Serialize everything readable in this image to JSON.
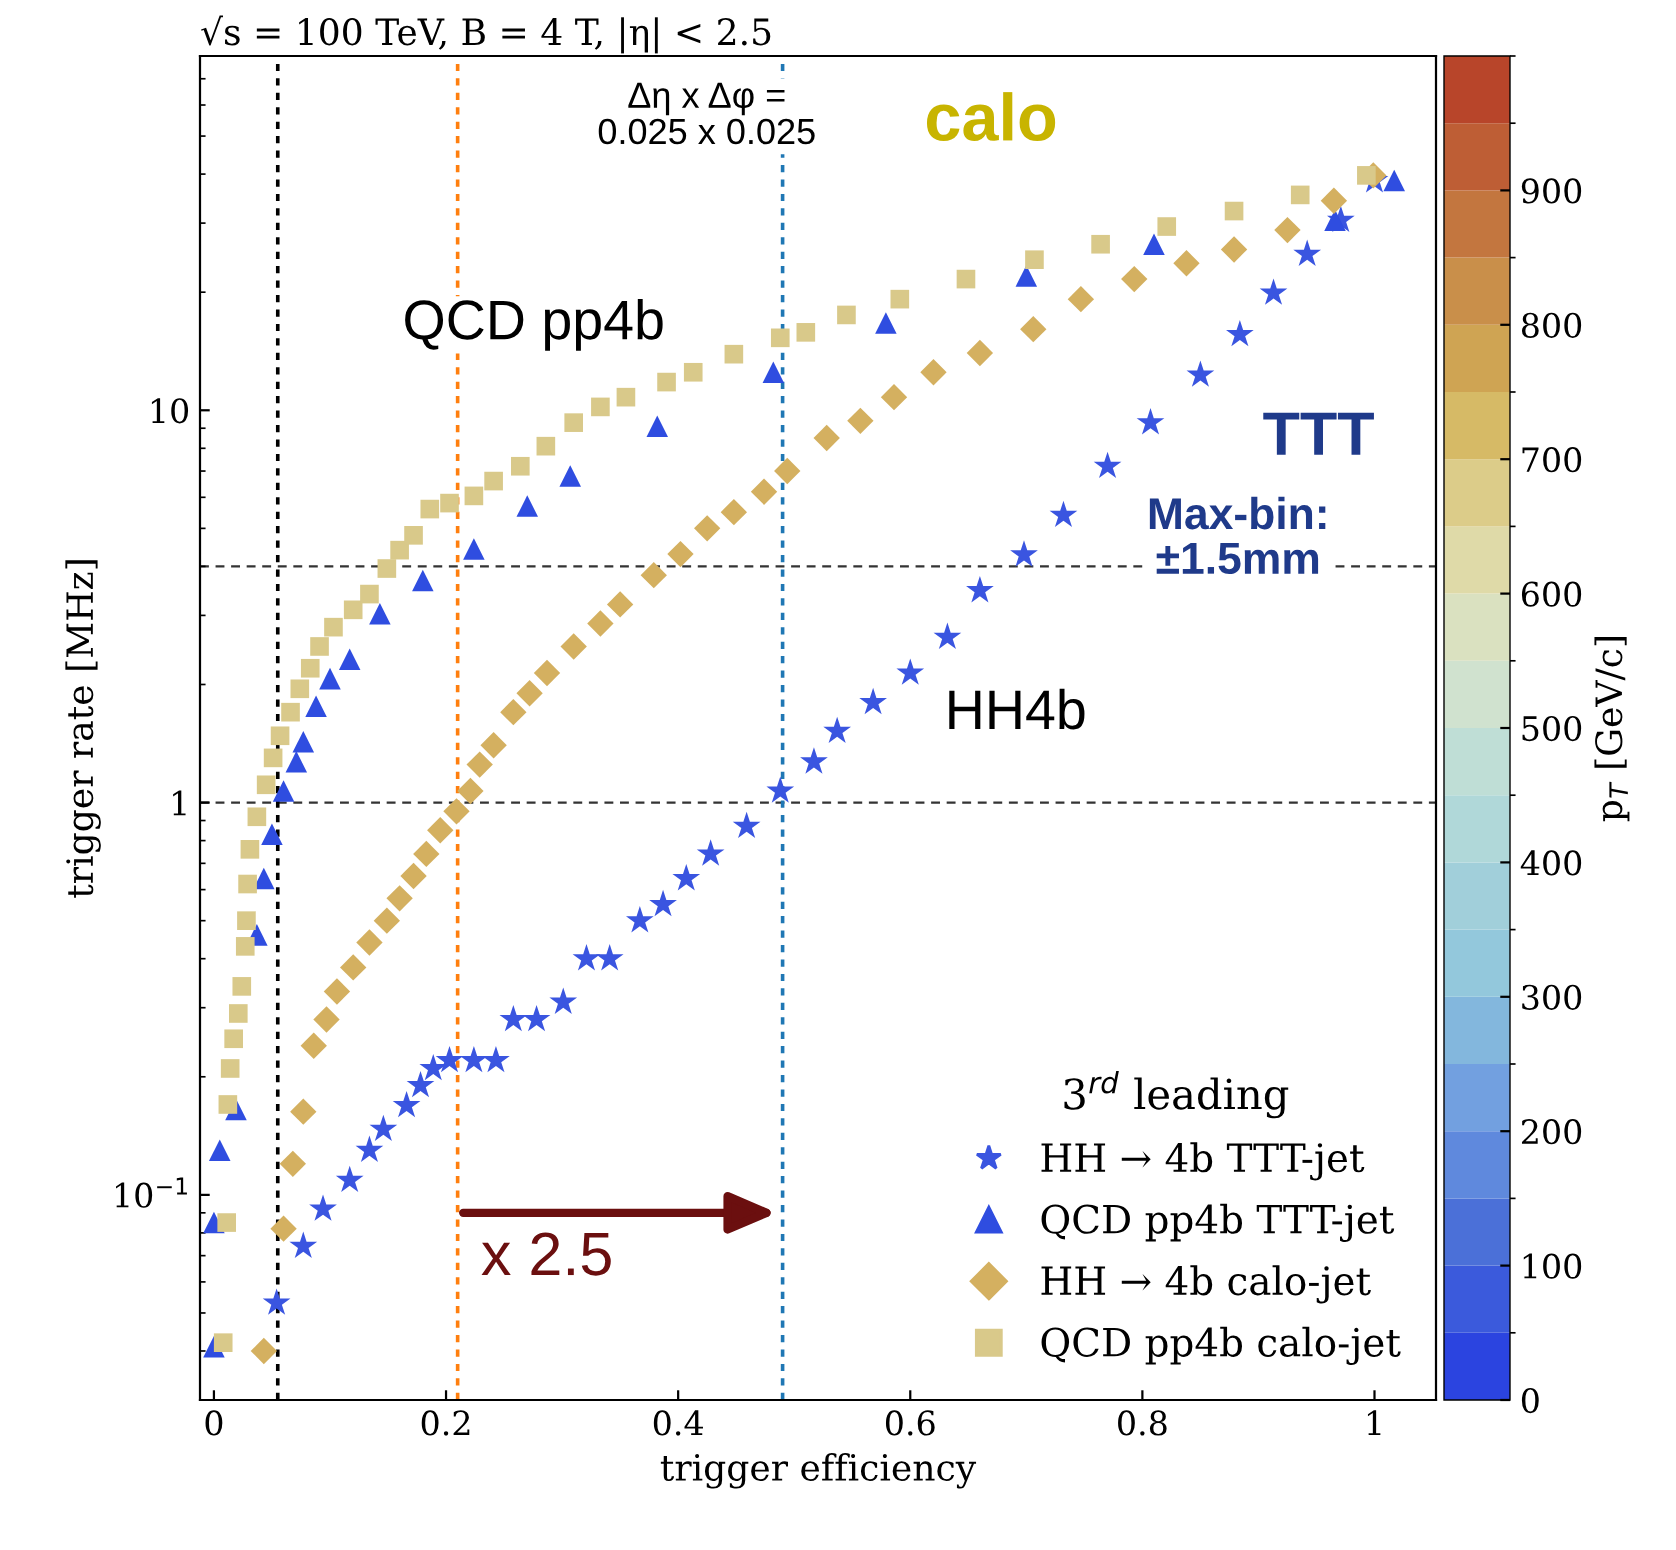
{
  "chart_data": {
    "type": "scatter",
    "title": "√s = 100 TeV, B = 4 T, |η| < 2.5",
    "xlabel": "trigger efficiency",
    "ylabel": "trigger rate [MHz]",
    "clabel": "p$_{T}$ [GeV/c]",
    "legend_title": "3$^{rd}$ leading",
    "legend": "bottom right",
    "log": "y",
    "xlim": [
      -0.012,
      1.053
    ],
    "xticks": [
      0,
      0.2,
      0.4,
      0.6,
      0.8,
      1
    ],
    "ylim": [
      0.03,
      80
    ],
    "yticks": [
      {
        "value": 0.1,
        "label": "10$^{−1}$"
      },
      1,
      10
    ],
    "clim": [
      0,
      1000
    ],
    "cticks": [
      0,
      100,
      200,
      300,
      400,
      500,
      600,
      700,
      800,
      900
    ],
    "annotations": [
      "Δη x Δφ =\n0.025 x 0.025",
      "calo",
      "QCD pp4b",
      "TTT",
      "Max-bin:\n±1.5mm",
      "HH4b",
      {
        "text": "x 2.5",
        "x": 0.21,
        "y": 0.09
      }
    ],
    "ref_lines": [
      {
        "axis": "y",
        "value": 4,
        "color": "#333333",
        "line_style": "dashed"
      },
      {
        "axis": "y",
        "value": 1,
        "color": "#333333",
        "line_style": "dashed"
      },
      {
        "axis": "x",
        "value": 0.055,
        "color": "#000000",
        "line_style": "dotted"
      },
      {
        "axis": "x",
        "value": 0.21,
        "color": "#ff7f0e",
        "line_style": "dotted"
      },
      {
        "axis": "x",
        "value": 0.49,
        "color": "#1f77b4",
        "line_style": "dotted"
      }
    ],
    "series": [
      {
        "name": "HH → 4b TTT-jet",
        "marker": "star",
        "color": "#3a55e0",
        "x": [
          0.054,
          0.077,
          0.094,
          0.117,
          0.134,
          0.146,
          0.166,
          0.178,
          0.189,
          0.203,
          0.224,
          0.243,
          0.258,
          0.278,
          0.301,
          0.321,
          0.341,
          0.367,
          0.387,
          0.407,
          0.428,
          0.459,
          0.488,
          0.517,
          0.537,
          0.568,
          0.6,
          0.632,
          0.66,
          0.698,
          0.732,
          0.77,
          0.807,
          0.85,
          0.884,
          0.913,
          0.942,
          0.971,
          1.0
        ],
        "values": [
          0.053,
          0.074,
          0.092,
          0.109,
          0.13,
          0.147,
          0.169,
          0.19,
          0.21,
          0.22,
          0.22,
          0.22,
          0.28,
          0.28,
          0.31,
          0.4,
          0.4,
          0.5,
          0.55,
          0.64,
          0.74,
          0.87,
          1.07,
          1.27,
          1.52,
          1.8,
          2.14,
          2.64,
          3.47,
          4.28,
          5.4,
          7.2,
          9.3,
          12.3,
          15.6,
          19.9,
          25,
          30.5,
          38.5
        ]
      },
      {
        "name": "QCD pp4b TTT-jet",
        "marker": "triangle",
        "color": "#2f4de0",
        "x": [
          0.0,
          0.0,
          0.005,
          0.019,
          0.037,
          0.043,
          0.05,
          0.06,
          0.071,
          0.077,
          0.088,
          0.1,
          0.117,
          0.143,
          0.18,
          0.224,
          0.27,
          0.307,
          0.382,
          0.482,
          0.579,
          0.7,
          0.81,
          0.966,
          1.017
        ],
        "values": [
          0.041,
          0.085,
          0.13,
          0.165,
          0.46,
          0.64,
          0.83,
          1.07,
          1.27,
          1.43,
          1.76,
          2.07,
          2.32,
          3.03,
          3.68,
          4.43,
          5.7,
          6.8,
          9.1,
          12.5,
          16.7,
          22.0,
          26.5,
          30.5,
          38.5
        ]
      },
      {
        "name": "HH → 4b calo-jet",
        "marker": "diamond",
        "color": "#d4b060",
        "x": [
          0.043,
          0.06,
          0.068,
          0.077,
          0.086,
          0.097,
          0.106,
          0.12,
          0.134,
          0.149,
          0.16,
          0.172,
          0.183,
          0.195,
          0.209,
          0.221,
          0.229,
          0.241,
          0.258,
          0.272,
          0.287,
          0.31,
          0.333,
          0.35,
          0.379,
          0.402,
          0.425,
          0.448,
          0.474,
          0.494,
          0.528,
          0.557,
          0.586,
          0.62,
          0.66,
          0.706,
          0.747,
          0.793,
          0.838,
          0.879,
          0.925,
          0.965,
          0.999
        ],
        "values": [
          0.04,
          0.082,
          0.12,
          0.163,
          0.24,
          0.28,
          0.33,
          0.38,
          0.44,
          0.5,
          0.57,
          0.65,
          0.74,
          0.85,
          0.95,
          1.07,
          1.25,
          1.4,
          1.7,
          1.9,
          2.14,
          2.5,
          2.86,
          3.2,
          3.8,
          4.3,
          5.0,
          5.5,
          6.2,
          7.0,
          8.5,
          9.4,
          10.8,
          12.5,
          14.0,
          16.1,
          19.2,
          21.6,
          23.7,
          25.7,
          28.8,
          34.2,
          39.7
        ]
      },
      {
        "name": "QCD pp4b calo-jet",
        "marker": "square",
        "color": "#d9c98a",
        "x": [
          0.008,
          0.011,
          0.012,
          0.014,
          0.017,
          0.021,
          0.024,
          0.027,
          0.028,
          0.029,
          0.031,
          0.037,
          0.045,
          0.051,
          0.057,
          0.066,
          0.074,
          0.083,
          0.091,
          0.103,
          0.12,
          0.134,
          0.149,
          0.16,
          0.172,
          0.186,
          0.203,
          0.224,
          0.241,
          0.264,
          0.286,
          0.31,
          0.333,
          0.355,
          0.39,
          0.413,
          0.448,
          0.488,
          0.51,
          0.545,
          0.591,
          0.648,
          0.707,
          0.764,
          0.821,
          0.879,
          0.936,
          0.993
        ],
        "values": [
          0.042,
          0.085,
          0.17,
          0.21,
          0.25,
          0.29,
          0.34,
          0.43,
          0.5,
          0.62,
          0.76,
          0.92,
          1.11,
          1.3,
          1.48,
          1.7,
          1.95,
          2.2,
          2.5,
          2.8,
          3.1,
          3.4,
          3.95,
          4.4,
          4.8,
          5.6,
          5.8,
          6.05,
          6.6,
          7.2,
          8.1,
          9.3,
          10.2,
          10.8,
          11.8,
          12.5,
          13.9,
          15.3,
          15.8,
          17.5,
          19.2,
          21.6,
          24.2,
          26.5,
          29.4,
          32.2,
          35.4,
          39.7
        ]
      }
    ]
  }
}
